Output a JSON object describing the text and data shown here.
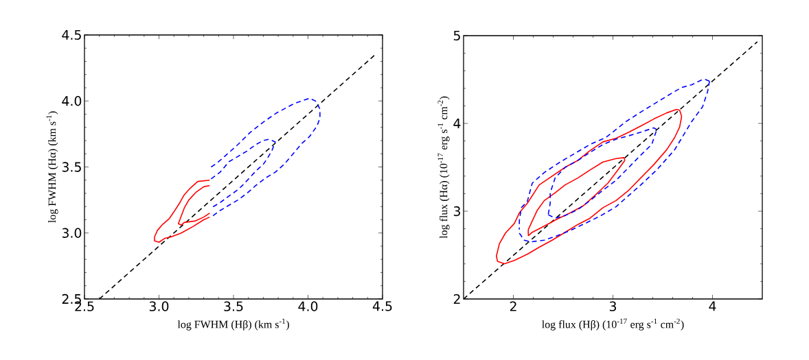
{
  "chart_data": [
    {
      "type": "line",
      "xlabel": "log FWHM (Hβ) (km s$^{-1}$)",
      "ylabel": "log FWHM (Hα) (km s$^{-1}$)",
      "xlim": [
        2.5,
        4.5
      ],
      "ylim": [
        2.5,
        4.5
      ],
      "xticks": [
        {
          "value": 2.5,
          "label": "2.5"
        },
        {
          "value": 3.0,
          "label": "3.0"
        },
        {
          "value": 3.5,
          "label": "3.5"
        },
        {
          "value": 4.0,
          "label": "4.0"
        },
        {
          "value": 4.5,
          "label": "4.5"
        }
      ],
      "yticks": [
        {
          "value": 2.5,
          "label": "2.5"
        },
        {
          "value": 3.0,
          "label": "3.0"
        },
        {
          "value": 3.5,
          "label": "3.5"
        },
        {
          "value": 4.0,
          "label": "4.0"
        },
        {
          "value": 4.5,
          "label": "4.5"
        }
      ],
      "series": [
        {
          "color": "#000000",
          "line_style": "dashed",
          "x": [
            2.6,
            4.45
          ],
          "values": [
            2.5,
            4.35
          ]
        },
        {
          "color": "#ff0000",
          "line_style": "solid",
          "x": [
            3.34,
            3.26,
            3.21,
            3.17,
            3.14,
            3.1,
            3.07,
            3.02,
            2.99,
            2.97,
            2.97,
            3.0,
            3.04,
            3.08,
            3.15,
            3.23,
            3.3,
            3.34
          ],
          "values": [
            3.4,
            3.39,
            3.34,
            3.29,
            3.23,
            3.16,
            3.11,
            3.06,
            3.02,
            2.97,
            2.94,
            2.93,
            2.96,
            2.97,
            3.0,
            3.05,
            3.1,
            3.12
          ]
        },
        {
          "color": "#ff0000",
          "line_style": "solid",
          "x": [
            3.34,
            3.3,
            3.25,
            3.2,
            3.17,
            3.13,
            3.15,
            3.17,
            3.24,
            3.3,
            3.34
          ],
          "values": [
            3.36,
            3.35,
            3.31,
            3.25,
            3.19,
            3.07,
            3.06,
            3.08,
            3.09,
            3.12,
            3.15
          ]
        },
        {
          "color": "#0000ff",
          "line_style": "dashed",
          "x": [
            3.35,
            3.39,
            3.44,
            3.53,
            3.61,
            3.7,
            3.79,
            3.89,
            3.93,
            4.01,
            4.05,
            4.08,
            4.08,
            4.06,
            4.01,
            3.96,
            3.9,
            3.84,
            3.78,
            3.72,
            3.65,
            3.59,
            3.53,
            3.47,
            3.41,
            3.35
          ],
          "values": [
            3.5,
            3.53,
            3.58,
            3.67,
            3.76,
            3.84,
            3.91,
            3.97,
            3.99,
            4.02,
            4.0,
            3.94,
            3.87,
            3.81,
            3.73,
            3.68,
            3.6,
            3.52,
            3.46,
            3.42,
            3.36,
            3.3,
            3.25,
            3.21,
            3.17,
            3.12
          ]
        },
        {
          "color": "#0000ff",
          "line_style": "dashed",
          "x": [
            3.35,
            3.41,
            3.47,
            3.53,
            3.59,
            3.65,
            3.7,
            3.74,
            3.78,
            3.76,
            3.73,
            3.7,
            3.65,
            3.61,
            3.56,
            3.52,
            3.47,
            3.41,
            3.35
          ],
          "values": [
            3.41,
            3.46,
            3.54,
            3.58,
            3.62,
            3.67,
            3.7,
            3.71,
            3.69,
            3.63,
            3.57,
            3.52,
            3.47,
            3.42,
            3.36,
            3.32,
            3.28,
            3.23,
            3.19
          ]
        }
      ]
    },
    {
      "type": "line",
      "xlabel": "log flux (Hβ) (10$^{-17}$ erg s$^{-1}$ cm$^{-2}$)",
      "ylabel": "log flux (Hα) (10$^{-17}$ erg s$^{-1}$ cm$^{-2}$)",
      "xlim": [
        1.5,
        4.5
      ],
      "ylim": [
        2,
        5
      ],
      "xticks": [
        2,
        3,
        4
      ],
      "yticks": [
        2,
        3,
        4,
        5
      ],
      "series": [
        {
          "color": "#000000",
          "line_style": "dashed",
          "x": [
            1.5,
            4.45
          ],
          "values": [
            2.0,
            4.93
          ]
        },
        {
          "color": "#ff0000",
          "line_style": "solid",
          "x": [
            1.91,
            2.01,
            2.14,
            2.26,
            2.39,
            2.52,
            2.65,
            2.77,
            2.9,
            3.03,
            3.16,
            3.28,
            3.41,
            3.54,
            3.62,
            3.67,
            3.69
          ],
          "values": [
            2.4,
            2.44,
            2.51,
            2.59,
            2.67,
            2.76,
            2.85,
            2.92,
            3.04,
            3.12,
            3.24,
            3.38,
            3.53,
            3.7,
            3.84,
            3.96,
            4.08
          ]
        },
        {
          "color": "#ff0000",
          "line_style": "solid",
          "x": [
            3.69,
            3.67,
            3.64,
            3.54,
            3.41,
            3.28,
            3.16,
            3.03,
            2.9,
            2.77,
            2.65,
            2.52,
            2.39,
            2.26,
            2.14,
            2.06,
            2.01,
            1.92,
            1.86,
            1.83,
            1.84,
            1.91
          ],
          "values": [
            4.08,
            4.15,
            4.16,
            4.12,
            4.05,
            3.97,
            3.9,
            3.83,
            3.79,
            3.69,
            3.58,
            3.5,
            3.4,
            3.3,
            3.09,
            2.98,
            2.86,
            2.75,
            2.63,
            2.49,
            2.43,
            2.4
          ]
        },
        {
          "color": "#ff0000",
          "line_style": "solid",
          "x": [
            2.15,
            2.19,
            2.31,
            2.44,
            2.57,
            2.7,
            2.82,
            2.95,
            3.05,
            3.12
          ],
          "values": [
            2.72,
            2.76,
            2.83,
            2.91,
            2.98,
            3.06,
            3.18,
            3.32,
            3.47,
            3.58
          ]
        },
        {
          "color": "#ff0000",
          "line_style": "solid",
          "x": [
            3.12,
            3.11,
            3.03,
            2.9,
            2.77,
            2.65,
            2.52,
            2.42,
            2.31,
            2.24,
            2.19,
            2.15,
            2.15
          ],
          "values": [
            3.58,
            3.61,
            3.6,
            3.56,
            3.47,
            3.38,
            3.3,
            3.21,
            3.12,
            3.01,
            2.89,
            2.79,
            2.72
          ]
        },
        {
          "color": "#0000ff",
          "line_style": "dashed",
          "x": [
            2.06,
            2.11,
            2.17,
            2.31,
            2.44,
            2.57,
            2.72,
            2.88,
            3.03,
            3.16,
            3.28,
            3.44,
            3.62,
            3.79,
            3.9,
            3.95,
            3.97
          ],
          "values": [
            2.75,
            2.67,
            2.65,
            2.67,
            2.72,
            2.78,
            2.86,
            2.95,
            3.05,
            3.18,
            3.3,
            3.47,
            3.7,
            4.02,
            4.19,
            4.36,
            4.48
          ]
        },
        {
          "color": "#0000ff",
          "line_style": "dashed",
          "x": [
            3.97,
            3.93,
            3.9,
            3.79,
            3.69,
            3.54,
            3.41,
            3.28,
            3.13,
            2.93,
            2.77,
            2.62,
            2.47,
            2.31,
            2.19,
            2.14,
            2.08,
            2.06,
            2.06
          ],
          "values": [
            4.48,
            4.5,
            4.5,
            4.44,
            4.41,
            4.31,
            4.22,
            4.13,
            4.02,
            3.84,
            3.76,
            3.66,
            3.56,
            3.44,
            3.32,
            3.11,
            3.04,
            2.89,
            2.79
          ]
        },
        {
          "color": "#0000ff",
          "line_style": "dashed",
          "x": [
            2.35,
            2.42,
            2.52,
            2.65,
            2.77,
            2.9,
            3.03,
            3.16,
            3.28,
            3.39,
            3.44
          ],
          "values": [
            2.96,
            2.92,
            2.95,
            3.02,
            3.12,
            3.24,
            3.35,
            3.5,
            3.64,
            3.76,
            3.93
          ]
        },
        {
          "color": "#0000ff",
          "line_style": "dashed",
          "x": [
            3.44,
            3.41,
            3.28,
            3.16,
            3.03,
            2.9,
            2.77,
            2.65,
            2.52,
            2.42,
            2.37,
            2.37,
            2.35
          ],
          "values": [
            3.93,
            3.95,
            3.9,
            3.86,
            3.82,
            3.76,
            3.67,
            3.58,
            3.5,
            3.38,
            3.21,
            3.09,
            2.96
          ]
        }
      ]
    }
  ]
}
